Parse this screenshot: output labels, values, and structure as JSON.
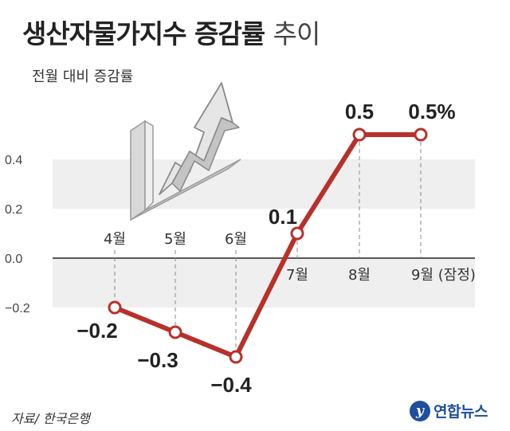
{
  "header": {
    "title_main": "생산자물가지수 증감률",
    "title_suffix": "추이",
    "subtitle": "전월 대비 증감률"
  },
  "footer": {
    "source": "자료/ 한국은행",
    "logo_mark": "y",
    "logo_text": "연합뉴스"
  },
  "colors": {
    "line": "#b8302a",
    "band": "#efefef",
    "zero_line": "#222222",
    "guide": "#888888"
  },
  "decoration": {
    "icon": "rising-arrow-chart-icon"
  },
  "chart_data": {
    "type": "line",
    "categories": [
      "4월",
      "5월",
      "6월",
      "7월",
      "8월",
      "9월 (잠정)"
    ],
    "values": [
      -0.2,
      -0.3,
      -0.4,
      0.1,
      0.5,
      0.5
    ],
    "value_labels": [
      "−0.2",
      "−0.3",
      "−0.4",
      "0.1",
      "0.5",
      "0.5%"
    ],
    "y_ticks": [
      "0.4",
      "0.2",
      "0.0",
      "−0.2"
    ],
    "ylim": [
      -0.4,
      0.5
    ],
    "grid": "alternating-bands"
  }
}
